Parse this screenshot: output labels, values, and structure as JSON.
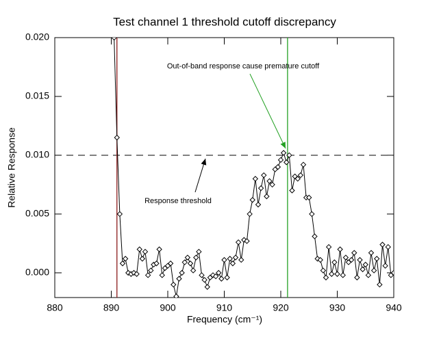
{
  "chart_data": {
    "type": "line",
    "title": "Test channel 1 threshold cutoff discrepancy",
    "xlabel": "Frequency (cm⁻¹)",
    "ylabel": "Relative Response",
    "xlim": [
      880,
      940
    ],
    "ylim": [
      -0.0021,
      0.02
    ],
    "xticks": [
      880,
      890,
      900,
      910,
      920,
      930,
      940
    ],
    "yticks": [
      {
        "value": 0,
        "label": "0.000"
      },
      {
        "value": 0.005,
        "label": "0.005"
      },
      {
        "value": 0.01,
        "label": "0.010"
      },
      {
        "value": 0.015,
        "label": "0.015"
      },
      {
        "value": 0.02,
        "label": "0.020"
      }
    ],
    "threshold": 0.01,
    "vlines": [
      {
        "x": 891,
        "color": "#8b1a1a"
      },
      {
        "x": 921.2,
        "color": "#22a022"
      }
    ],
    "annotations": [
      {
        "text": "Out-of-band response cause premature cutoff",
        "color": "#22a022"
      },
      {
        "text": "Response threshold",
        "color": "#000000"
      }
    ],
    "series": [
      {
        "color": "#000000",
        "x": [
          890.5,
          891,
          891.5,
          892,
          892.5,
          893,
          893.5,
          894,
          894.5,
          895,
          895.5,
          896,
          896.5,
          897,
          897.5,
          898,
          898.5,
          899,
          899.5,
          900,
          900.5,
          901,
          901.5,
          902,
          902.5,
          903,
          903.5,
          904,
          904.5,
          905,
          905.5,
          906,
          906.5,
          907,
          907.5,
          908,
          908.5,
          909,
          909.5,
          910,
          910.5,
          911,
          911.5,
          912,
          912.5,
          913,
          913.5,
          914,
          914.5,
          915,
          915.5,
          916,
          916.5,
          917,
          917.5,
          918,
          918.5,
          919,
          919.5,
          920,
          920.5,
          921,
          921.5,
          922,
          922.5,
          923,
          923.5,
          924,
          924.5,
          925,
          925.5,
          926,
          926.5,
          927,
          927.5,
          928,
          928.5,
          929,
          929.5,
          930,
          930.5,
          931,
          931.5,
          932,
          932.5,
          933,
          933.5,
          934,
          934.5,
          935,
          935.5,
          936,
          936.5,
          937,
          937.5,
          938,
          938.5,
          939,
          939.5,
          940
        ],
        "values": [
          0.02,
          0.0115,
          0.005,
          0.0008,
          0.0012,
          0.0,
          -0.0001,
          0.0,
          -0.0001,
          0.002,
          0.0012,
          0.0018,
          -0.0002,
          0.0002,
          0.0007,
          0.0008,
          0.002,
          -0.0002,
          0.0004,
          0.0006,
          0.0008,
          -0.001,
          -0.002,
          -0.0005,
          0.0,
          0.0009,
          0.0013,
          0.0008,
          0.0002,
          0.0013,
          0.0018,
          -0.0002,
          -0.0006,
          -0.0012,
          -0.0004,
          -0.0002,
          -0.0003,
          0.0,
          -0.0005,
          0.0011,
          -0.0004,
          0.0012,
          0.0008,
          0.0013,
          0.0026,
          0.0011,
          0.0028,
          0.0027,
          0.005,
          0.0062,
          0.008,
          0.0058,
          0.0072,
          0.0083,
          0.0065,
          0.0078,
          0.0075,
          0.0088,
          0.009,
          0.0096,
          0.0102,
          0.0094,
          0.01,
          0.007,
          0.0082,
          0.008,
          0.0083,
          0.0092,
          0.0064,
          0.0064,
          0.005,
          0.0031,
          0.0012,
          0.0011,
          0.0002,
          -0.0004,
          0.0022,
          -0.0001,
          0.0009,
          -0.0001,
          0.002,
          -0.0002,
          0.0013,
          0.0009,
          0.0011,
          0.0017,
          -0.0004,
          0.0011,
          0.0003,
          0.0007,
          -0.0002,
          0.0017,
          0.0002,
          0.0012,
          -0.001,
          0.0024,
          0.0006,
          0.0022,
          -0.0002,
          0.0
        ]
      }
    ]
  }
}
